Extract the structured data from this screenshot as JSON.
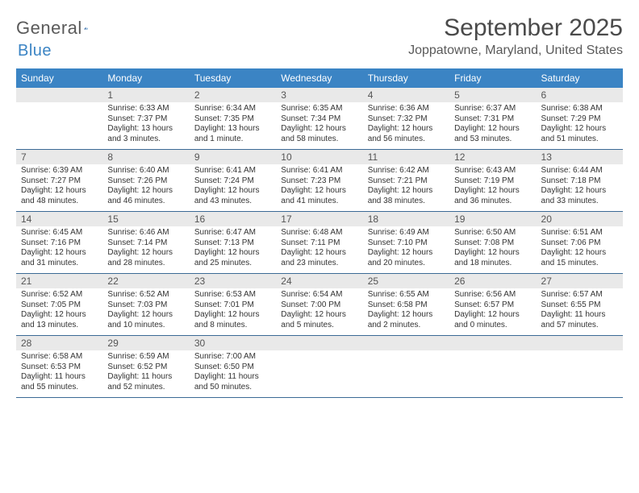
{
  "brand": {
    "name1": "General",
    "name2": "Blue"
  },
  "title": "September 2025",
  "location": "Joppatowne, Maryland, United States",
  "colors": {
    "header_bg": "#3b84c4",
    "header_text": "#ffffff",
    "band_bg": "#e9e9e9",
    "rule": "#3b6a95",
    "text": "#333333",
    "title_text": "#4a4a4a"
  },
  "daysOfWeek": [
    "Sunday",
    "Monday",
    "Tuesday",
    "Wednesday",
    "Thursday",
    "Friday",
    "Saturday"
  ],
  "weeks": [
    [
      {
        "n": "",
        "lines": [
          "",
          "",
          "",
          ""
        ]
      },
      {
        "n": "1",
        "lines": [
          "Sunrise: 6:33 AM",
          "Sunset: 7:37 PM",
          "Daylight: 13 hours",
          "and 3 minutes."
        ]
      },
      {
        "n": "2",
        "lines": [
          "Sunrise: 6:34 AM",
          "Sunset: 7:35 PM",
          "Daylight: 13 hours",
          "and 1 minute."
        ]
      },
      {
        "n": "3",
        "lines": [
          "Sunrise: 6:35 AM",
          "Sunset: 7:34 PM",
          "Daylight: 12 hours",
          "and 58 minutes."
        ]
      },
      {
        "n": "4",
        "lines": [
          "Sunrise: 6:36 AM",
          "Sunset: 7:32 PM",
          "Daylight: 12 hours",
          "and 56 minutes."
        ]
      },
      {
        "n": "5",
        "lines": [
          "Sunrise: 6:37 AM",
          "Sunset: 7:31 PM",
          "Daylight: 12 hours",
          "and 53 minutes."
        ]
      },
      {
        "n": "6",
        "lines": [
          "Sunrise: 6:38 AM",
          "Sunset: 7:29 PM",
          "Daylight: 12 hours",
          "and 51 minutes."
        ]
      }
    ],
    [
      {
        "n": "7",
        "lines": [
          "Sunrise: 6:39 AM",
          "Sunset: 7:27 PM",
          "Daylight: 12 hours",
          "and 48 minutes."
        ]
      },
      {
        "n": "8",
        "lines": [
          "Sunrise: 6:40 AM",
          "Sunset: 7:26 PM",
          "Daylight: 12 hours",
          "and 46 minutes."
        ]
      },
      {
        "n": "9",
        "lines": [
          "Sunrise: 6:41 AM",
          "Sunset: 7:24 PM",
          "Daylight: 12 hours",
          "and 43 minutes."
        ]
      },
      {
        "n": "10",
        "lines": [
          "Sunrise: 6:41 AM",
          "Sunset: 7:23 PM",
          "Daylight: 12 hours",
          "and 41 minutes."
        ]
      },
      {
        "n": "11",
        "lines": [
          "Sunrise: 6:42 AM",
          "Sunset: 7:21 PM",
          "Daylight: 12 hours",
          "and 38 minutes."
        ]
      },
      {
        "n": "12",
        "lines": [
          "Sunrise: 6:43 AM",
          "Sunset: 7:19 PM",
          "Daylight: 12 hours",
          "and 36 minutes."
        ]
      },
      {
        "n": "13",
        "lines": [
          "Sunrise: 6:44 AM",
          "Sunset: 7:18 PM",
          "Daylight: 12 hours",
          "and 33 minutes."
        ]
      }
    ],
    [
      {
        "n": "14",
        "lines": [
          "Sunrise: 6:45 AM",
          "Sunset: 7:16 PM",
          "Daylight: 12 hours",
          "and 31 minutes."
        ]
      },
      {
        "n": "15",
        "lines": [
          "Sunrise: 6:46 AM",
          "Sunset: 7:14 PM",
          "Daylight: 12 hours",
          "and 28 minutes."
        ]
      },
      {
        "n": "16",
        "lines": [
          "Sunrise: 6:47 AM",
          "Sunset: 7:13 PM",
          "Daylight: 12 hours",
          "and 25 minutes."
        ]
      },
      {
        "n": "17",
        "lines": [
          "Sunrise: 6:48 AM",
          "Sunset: 7:11 PM",
          "Daylight: 12 hours",
          "and 23 minutes."
        ]
      },
      {
        "n": "18",
        "lines": [
          "Sunrise: 6:49 AM",
          "Sunset: 7:10 PM",
          "Daylight: 12 hours",
          "and 20 minutes."
        ]
      },
      {
        "n": "19",
        "lines": [
          "Sunrise: 6:50 AM",
          "Sunset: 7:08 PM",
          "Daylight: 12 hours",
          "and 18 minutes."
        ]
      },
      {
        "n": "20",
        "lines": [
          "Sunrise: 6:51 AM",
          "Sunset: 7:06 PM",
          "Daylight: 12 hours",
          "and 15 minutes."
        ]
      }
    ],
    [
      {
        "n": "21",
        "lines": [
          "Sunrise: 6:52 AM",
          "Sunset: 7:05 PM",
          "Daylight: 12 hours",
          "and 13 minutes."
        ]
      },
      {
        "n": "22",
        "lines": [
          "Sunrise: 6:52 AM",
          "Sunset: 7:03 PM",
          "Daylight: 12 hours",
          "and 10 minutes."
        ]
      },
      {
        "n": "23",
        "lines": [
          "Sunrise: 6:53 AM",
          "Sunset: 7:01 PM",
          "Daylight: 12 hours",
          "and 8 minutes."
        ]
      },
      {
        "n": "24",
        "lines": [
          "Sunrise: 6:54 AM",
          "Sunset: 7:00 PM",
          "Daylight: 12 hours",
          "and 5 minutes."
        ]
      },
      {
        "n": "25",
        "lines": [
          "Sunrise: 6:55 AM",
          "Sunset: 6:58 PM",
          "Daylight: 12 hours",
          "and 2 minutes."
        ]
      },
      {
        "n": "26",
        "lines": [
          "Sunrise: 6:56 AM",
          "Sunset: 6:57 PM",
          "Daylight: 12 hours",
          "and 0 minutes."
        ]
      },
      {
        "n": "27",
        "lines": [
          "Sunrise: 6:57 AM",
          "Sunset: 6:55 PM",
          "Daylight: 11 hours",
          "and 57 minutes."
        ]
      }
    ],
    [
      {
        "n": "28",
        "lines": [
          "Sunrise: 6:58 AM",
          "Sunset: 6:53 PM",
          "Daylight: 11 hours",
          "and 55 minutes."
        ]
      },
      {
        "n": "29",
        "lines": [
          "Sunrise: 6:59 AM",
          "Sunset: 6:52 PM",
          "Daylight: 11 hours",
          "and 52 minutes."
        ]
      },
      {
        "n": "30",
        "lines": [
          "Sunrise: 7:00 AM",
          "Sunset: 6:50 PM",
          "Daylight: 11 hours",
          "and 50 minutes."
        ]
      },
      {
        "n": "",
        "lines": [
          "",
          "",
          "",
          ""
        ]
      },
      {
        "n": "",
        "lines": [
          "",
          "",
          "",
          ""
        ]
      },
      {
        "n": "",
        "lines": [
          "",
          "",
          "",
          ""
        ]
      },
      {
        "n": "",
        "lines": [
          "",
          "",
          "",
          ""
        ]
      }
    ]
  ]
}
